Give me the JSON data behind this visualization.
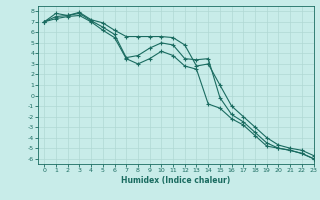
{
  "xlabel": "Humidex (Indice chaleur)",
  "bg_color": "#c8ece9",
  "grid_color_major": "#b0d8d4",
  "grid_color_minor": "#c0e4e0",
  "line_color": "#1a6b60",
  "xlim": [
    -0.5,
    23
  ],
  "ylim": [
    -6.5,
    8.5
  ],
  "xticks": [
    0,
    1,
    2,
    3,
    4,
    5,
    6,
    7,
    8,
    9,
    10,
    11,
    12,
    13,
    14,
    15,
    16,
    17,
    18,
    19,
    20,
    21,
    22,
    23
  ],
  "yticks": [
    8,
    7,
    6,
    5,
    4,
    3,
    2,
    1,
    0,
    -1,
    -2,
    -3,
    -4,
    -5,
    -6
  ],
  "line1_x": [
    0,
    1,
    2,
    3,
    4,
    5,
    6,
    7,
    8,
    9,
    10,
    11,
    12,
    13,
    14,
    15,
    16,
    17,
    18,
    19,
    20,
    21,
    22,
    23
  ],
  "line1_y": [
    7.0,
    7.8,
    7.6,
    7.9,
    7.2,
    6.9,
    6.2,
    5.6,
    5.6,
    5.6,
    5.6,
    5.5,
    4.8,
    2.8,
    3.0,
    1.0,
    -1.0,
    -2.0,
    -3.0,
    -4.0,
    -4.7,
    -5.0,
    -5.2,
    -5.7
  ],
  "line2_x": [
    0,
    1,
    2,
    3,
    4,
    5,
    6,
    7,
    8,
    9,
    10,
    11,
    12,
    13,
    14,
    15,
    16,
    17,
    18,
    19,
    20,
    21,
    22,
    23
  ],
  "line2_y": [
    7.0,
    7.5,
    7.6,
    7.8,
    7.1,
    6.5,
    5.8,
    3.6,
    3.8,
    4.5,
    5.0,
    4.8,
    3.5,
    3.4,
    3.5,
    -0.2,
    -1.8,
    -2.5,
    -3.5,
    -4.5,
    -5.0,
    -5.2,
    -5.5,
    -6.0
  ],
  "line3_x": [
    0,
    1,
    2,
    3,
    4,
    5,
    6,
    7,
    8,
    9,
    10,
    11,
    12,
    13,
    14,
    15,
    16,
    17,
    18,
    19,
    20,
    21,
    22,
    23
  ],
  "line3_y": [
    7.0,
    7.3,
    7.5,
    7.6,
    7.0,
    6.2,
    5.5,
    3.5,
    3.0,
    3.5,
    4.2,
    3.8,
    2.8,
    2.5,
    -0.8,
    -1.2,
    -2.2,
    -2.8,
    -3.8,
    -4.8,
    -5.0,
    -5.2,
    -5.5,
    -6.0
  ]
}
